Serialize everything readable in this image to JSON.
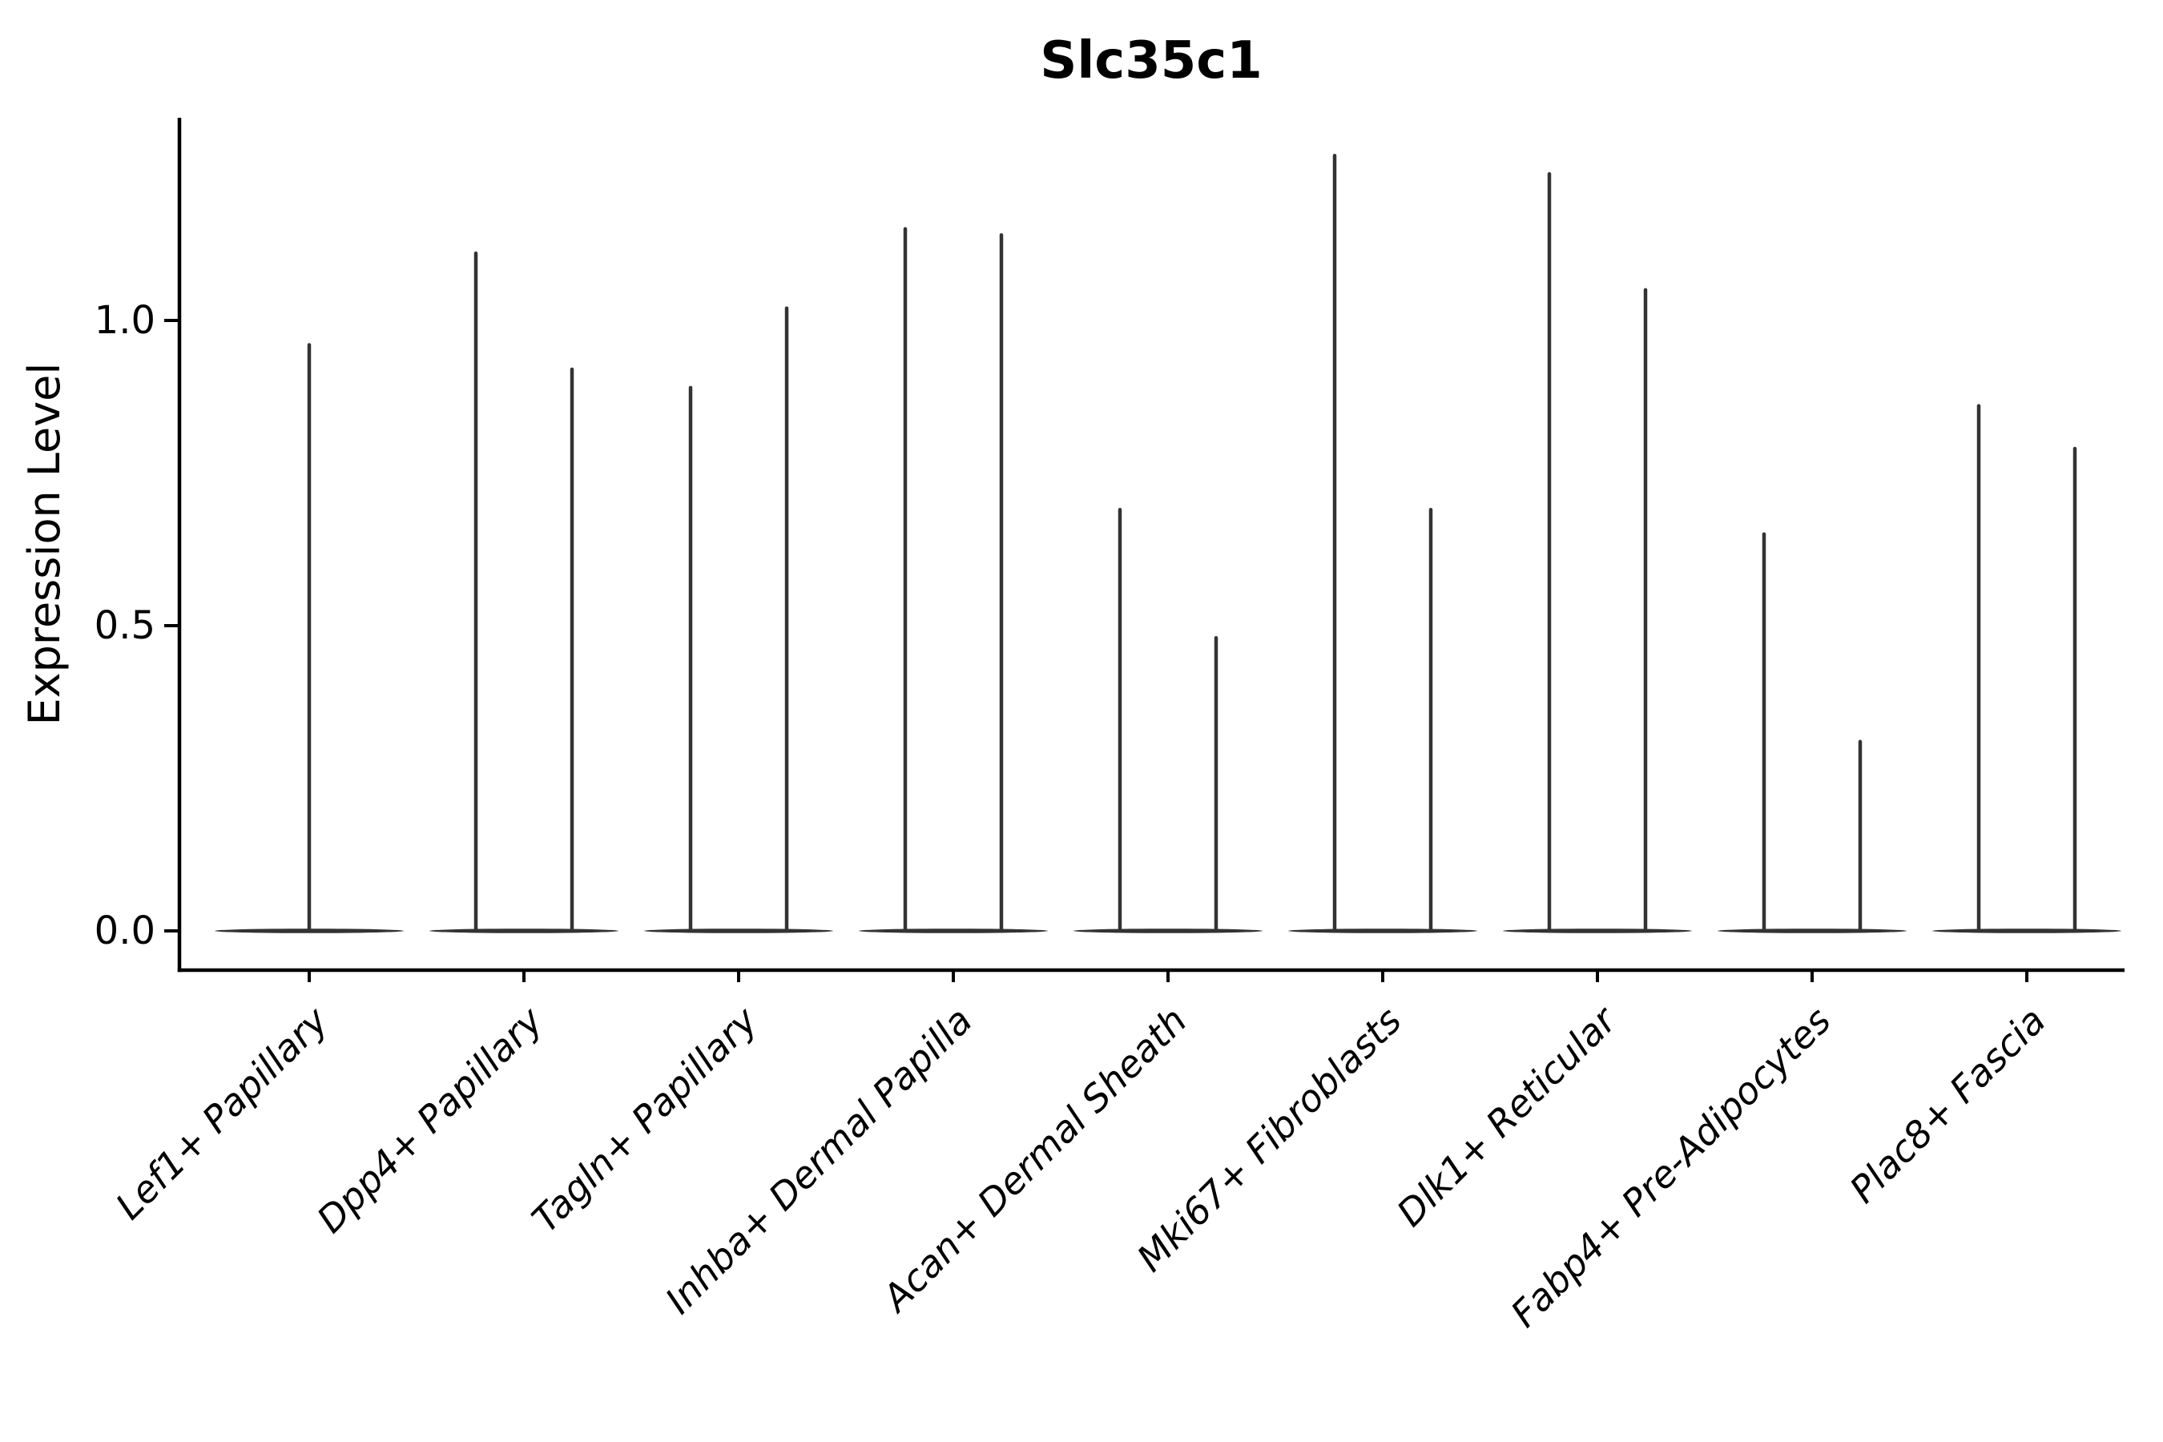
{
  "chart_data": {
    "type": "violin",
    "title": "Slc35c1",
    "ylabel": "Expression Level",
    "xlabel": "",
    "grid": false,
    "legend_position": "none",
    "y_axis": {
      "lim": [
        -0.06,
        1.33
      ],
      "ticks": [
        {
          "value": 1.0,
          "label": "1.0"
        },
        {
          "value": 0.5,
          "label": "0.5"
        },
        {
          "value": 0.0,
          "label": "0.0"
        }
      ]
    },
    "x_tick_rotation_deg": 45,
    "x_tick_style": "italic",
    "categories": [
      "Lef1+ Papillary",
      "Dpp4+ Papillary",
      "Tagln+ Papillary",
      "Inhba+ Dermal Papilla",
      "Acan+ Dermal Sheath",
      "Mki67+ Fibroblasts",
      "Dlk1+ Reticular",
      "Fabp4+ Pre-Adipocytes",
      "Plac8+ Fascia"
    ],
    "violins": [
      {
        "category": "Lef1+ Papillary",
        "spikes": [
          {
            "position": "center",
            "max_expression": 0.96
          }
        ]
      },
      {
        "category": "Dpp4+ Papillary",
        "spikes": [
          {
            "position": "left",
            "max_expression": 1.11
          },
          {
            "position": "right",
            "max_expression": 0.92
          }
        ]
      },
      {
        "category": "Tagln+ Papillary",
        "spikes": [
          {
            "position": "left",
            "max_expression": 0.89
          },
          {
            "position": "right",
            "max_expression": 1.02
          }
        ]
      },
      {
        "category": "Inhba+ Dermal Papilla",
        "spikes": [
          {
            "position": "left",
            "max_expression": 1.15
          },
          {
            "position": "right",
            "max_expression": 1.14
          }
        ]
      },
      {
        "category": "Acan+ Dermal Sheath",
        "spikes": [
          {
            "position": "left",
            "max_expression": 0.69
          },
          {
            "position": "right",
            "max_expression": 0.48
          }
        ]
      },
      {
        "category": "Mki67+ Fibroblasts",
        "spikes": [
          {
            "position": "left",
            "max_expression": 1.27
          },
          {
            "position": "right",
            "max_expression": 0.69
          }
        ]
      },
      {
        "category": "Dlk1+ Reticular",
        "spikes": [
          {
            "position": "left",
            "max_expression": 1.24
          },
          {
            "position": "right",
            "max_expression": 1.05
          }
        ]
      },
      {
        "category": "Fabp4+ Pre-Adipocytes",
        "spikes": [
          {
            "position": "left",
            "max_expression": 0.65
          },
          {
            "position": "right",
            "max_expression": 0.31
          }
        ]
      },
      {
        "category": "Plac8+ Fascia",
        "spikes": [
          {
            "position": "left",
            "max_expression": 0.86
          },
          {
            "position": "right",
            "max_expression": 0.79
          }
        ]
      }
    ],
    "style": {
      "violin_color": "#333333",
      "axis_color": "#000000",
      "text_color": "#000000",
      "background": "#ffffff"
    }
  }
}
